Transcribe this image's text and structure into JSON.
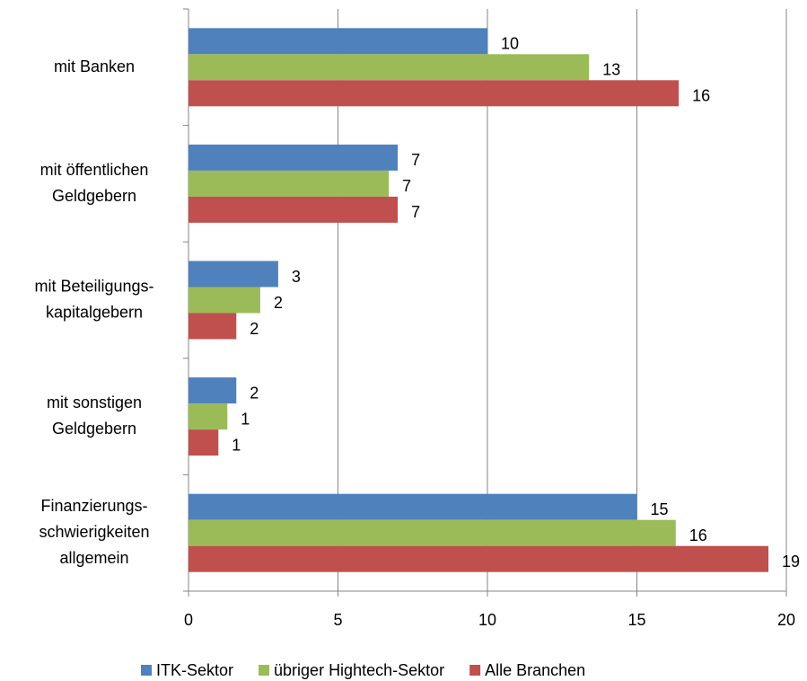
{
  "chart_data": {
    "type": "bar",
    "orientation": "horizontal",
    "categories": [
      "mit Banken",
      "mit öffentlichen\nGeldgebern",
      "mit Beteiligungs-\nkapitalgebern",
      "mit sonstigen\nGeldgebern",
      "Finanzierungs-\nschwierigkeiten\nallgemein"
    ],
    "series": [
      {
        "name": "ITK-Sektor",
        "color": "#4f81bd",
        "values": [
          10,
          7,
          3,
          1.6,
          15
        ],
        "value_labels": [
          "10",
          "7",
          "3",
          "2",
          "15"
        ]
      },
      {
        "name": "übriger Hightech-Sektor",
        "color": "#9bbb59",
        "values": [
          13.4,
          6.7,
          2.4,
          1.3,
          16.3
        ],
        "value_labels": [
          "13",
          "7",
          "2",
          "1",
          "16"
        ]
      },
      {
        "name": "Alle Branchen",
        "color": "#c0504d",
        "values": [
          16.4,
          7,
          1.6,
          1,
          19.4
        ],
        "value_labels": [
          "16",
          "7",
          "2",
          "1",
          "19"
        ]
      }
    ],
    "xlim": [
      0,
      20
    ],
    "xticks": [
      0,
      5,
      10,
      15,
      20
    ],
    "grid": true,
    "legend": "bottom"
  }
}
